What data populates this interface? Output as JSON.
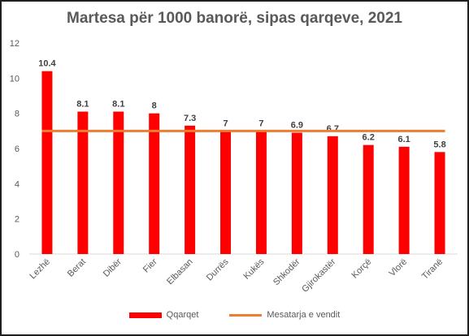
{
  "chart_data": {
    "type": "bar",
    "title": "Martesa për 1000 banorë, sipas qarqeve, 2021",
    "categories": [
      "Lezhë",
      "Berat",
      "Dibër",
      "Fier",
      "Elbasan",
      "Durrës",
      "Kukës",
      "Shkodër",
      "Gjirokastër",
      "Korçë",
      "Vlorë",
      "Tiranë"
    ],
    "series": [
      {
        "name": "Qqarqet",
        "type": "bar",
        "color": "#ff0000",
        "values": [
          10.4,
          8.1,
          8.1,
          8,
          7.3,
          7,
          7,
          6.9,
          6.7,
          6.2,
          6.1,
          5.8
        ],
        "labels": [
          "10.4",
          "8.1",
          "8.1",
          "8",
          "7.3",
          "7",
          "7",
          "6.9",
          "6.7",
          "6.2",
          "6.1",
          "5.8"
        ]
      },
      {
        "name": "Mesatarja e vendit",
        "type": "line",
        "color": "#ed7d31",
        "value": 7
      }
    ],
    "ylim": [
      0,
      12
    ],
    "yticks": [
      "0",
      "2",
      "4",
      "6",
      "8",
      "10",
      "12"
    ],
    "legend_position": "bottom",
    "grid": false
  }
}
